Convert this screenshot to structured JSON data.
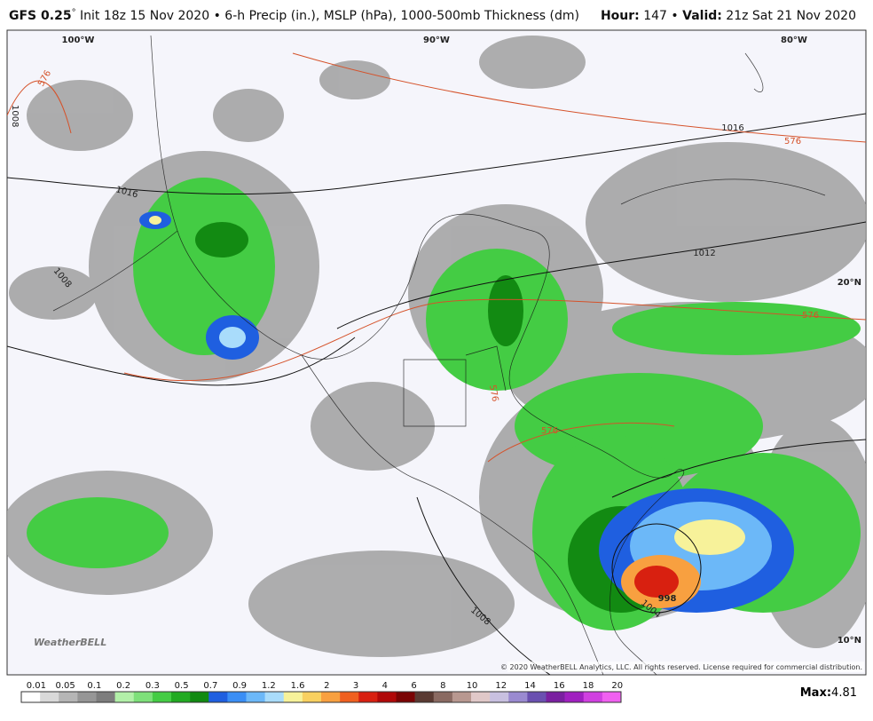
{
  "header": {
    "model": "GFS 0.25",
    "degree": "°",
    "description": " Init 18z 15 Nov 2020 • 6-h Precip (in.), MSLP (hPa), 1000-500mb Thickness (dm)",
    "hour_label": "Hour:",
    "hour": " 147 • ",
    "valid_label": "Valid:",
    "valid": " 21z Sat 21 Nov 2020"
  },
  "map": {
    "longitudes": [
      "100°W",
      "90°W",
      "80°W"
    ],
    "latitudes": [
      "20°N",
      "10°N"
    ],
    "contour_labels": {
      "thickness": [
        "576",
        "576",
        "576",
        "576",
        "576"
      ],
      "pressure": [
        "1016",
        "1016",
        "1012",
        "1008",
        "1008",
        "1008",
        "998",
        "1004"
      ]
    },
    "logo": "WeatherBELL",
    "copyright": "© 2020 WeatherBELL Analytics, LLC. All rights reserved. License required for commercial distribution."
  },
  "legend": {
    "labels": [
      "0.01",
      "0.05",
      "0.1",
      "0.2",
      "0.3",
      "0.5",
      "0.7",
      "0.9",
      "1.2",
      "1.6",
      "2",
      "3",
      "4",
      "6",
      "8",
      "10",
      "12",
      "14",
      "16",
      "18",
      "20"
    ],
    "colors": [
      "#ffffff",
      "#d9d9d9",
      "#b5b5b5",
      "#969696",
      "#7d7d7d",
      "#b2f0a8",
      "#7ee07a",
      "#44cc44",
      "#22aa22",
      "#128a12",
      "#1f5fe0",
      "#3a8ef5",
      "#6cb8f8",
      "#a9dcfb",
      "#f7f29a",
      "#f8d060",
      "#f8a040",
      "#f06020",
      "#d82010",
      "#b00808",
      "#7a0404",
      "#5a3a32",
      "#8a6a62",
      "#b89890",
      "#e0c8c8",
      "#c8c0e0",
      "#9a8ad0",
      "#6a50b0",
      "#7a20a0",
      "#a020c0",
      "#d040e0",
      "#f060f0"
    ],
    "max_label": "Max:",
    "max": "4.81"
  }
}
